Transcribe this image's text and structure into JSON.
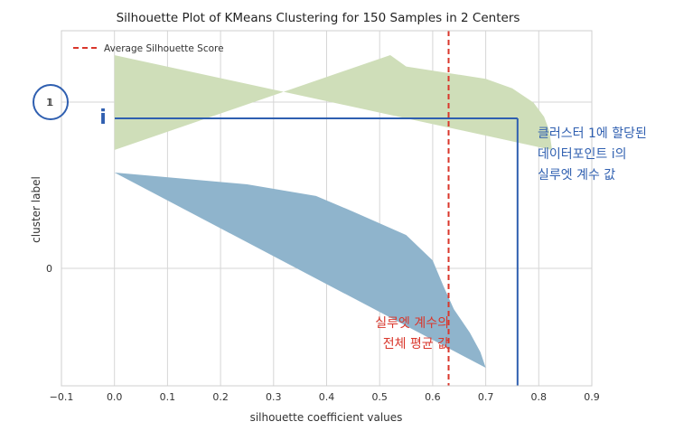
{
  "chart_data": {
    "type": "area",
    "title": "Silhouette Plot of KMeans Clustering for 150 Samples in 2 Centers",
    "xlabel": "silhouette coefficient values",
    "ylabel": "cluster label",
    "xlim": [
      -0.1,
      0.9
    ],
    "x_ticks": [
      "−0.1",
      "0.0",
      "0.1",
      "0.2",
      "0.3",
      "0.4",
      "0.5",
      "0.6",
      "0.7",
      "0.8",
      "0.9"
    ],
    "y_ticks": [
      "0",
      "1"
    ],
    "grid": true,
    "legend": {
      "placement": "top-left",
      "entries": [
        "Average Silhouette Score"
      ]
    },
    "average_silhouette_score": 0.63,
    "colors": {
      "cluster_0": "#8fb4cc",
      "cluster_1": "#cfdeb9",
      "average_line": "#d9362b",
      "annotation": "#2f5fb0",
      "axes_bg": "#ffffff",
      "grid": "#d6d6d6"
    },
    "series": [
      {
        "name": "1",
        "max": 0.825,
        "profile": [
          [
            0,
            0.52
          ],
          [
            0.12,
            0.55
          ],
          [
            0.25,
            0.7
          ],
          [
            0.35,
            0.75
          ],
          [
            0.5,
            0.79
          ],
          [
            0.65,
            0.81
          ],
          [
            0.8,
            0.82
          ],
          [
            1,
            0.825
          ]
        ]
      },
      {
        "name": "0",
        "max": 0.7,
        "profile": [
          [
            0,
            0.0
          ],
          [
            0.06,
            0.25
          ],
          [
            0.12,
            0.38
          ],
          [
            0.2,
            0.45
          ],
          [
            0.32,
            0.55
          ],
          [
            0.45,
            0.6
          ],
          [
            0.58,
            0.62
          ],
          [
            0.7,
            0.64
          ],
          [
            0.82,
            0.67
          ],
          [
            0.92,
            0.69
          ],
          [
            1,
            0.7
          ]
        ]
      }
    ],
    "highlight_point": {
      "label": "i",
      "cluster": "1",
      "value": 0.76
    }
  },
  "annotations": {
    "circle_label": "1",
    "point_label": "i",
    "blue_text": [
      "클러스터 1에 할당된",
      "데이터포인트 i의",
      "실루엣 계수 값"
    ],
    "red_text": [
      "실루엣 계수의",
      "전체 평균 값"
    ]
  }
}
